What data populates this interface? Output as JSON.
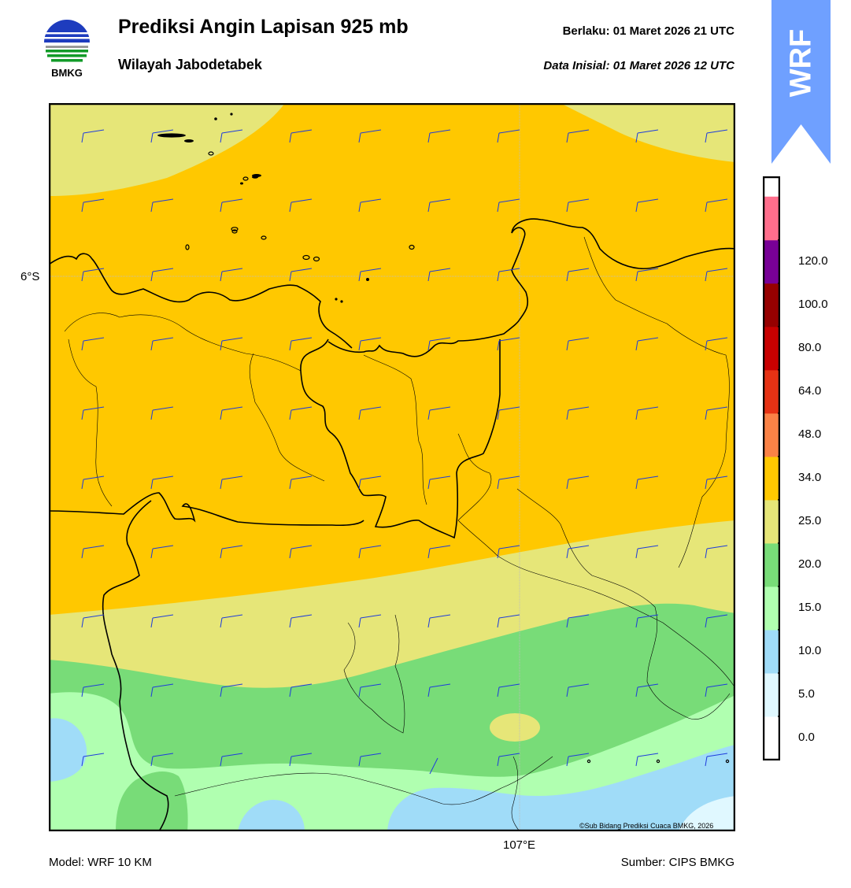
{
  "header": {
    "logo_text": "BMKG",
    "title": "Prediksi Angin Lapisan 925 mb",
    "subtitle": "Wilayah Jabodetabek",
    "valid_time": "Berlaku:  01 Maret 2026 21 UTC",
    "init_time": "Data Inisial:  01 Maret 2026 12 UTC",
    "badge": "WRF"
  },
  "map": {
    "lat_label": "6°S",
    "lon_label": "107°E",
    "credit": "©Sub Bidang Prediksi Cuaca BMKG, 2026"
  },
  "footer": {
    "model": "Model: WRF 10 KM",
    "source": "Sumber: CIPS BMKG"
  },
  "legend": {
    "labels": [
      "0.0",
      "5.0",
      "10.0",
      "15.0",
      "20.0",
      "25.0",
      "34.0",
      "48.0",
      "64.0",
      "80.0",
      "100.0",
      "120.0"
    ],
    "colors": [
      "#ffffff",
      "#e0f8ff",
      "#a0dcf8",
      "#b0ffb0",
      "#78dc78",
      "#e6e678",
      "#ffc800",
      "#fa8246",
      "#e63214",
      "#c80000",
      "#960000",
      "#780096",
      "#ff6e8c"
    ]
  },
  "colors": {
    "badge": "#6fa0ff",
    "barb": "#1e3cdc",
    "speed_bands": {
      "light_blue": "#a0dcf8",
      "pale_green": "#b0ffb0",
      "green": "#78dc78",
      "khaki": "#e6e678",
      "orange": "#ffc800"
    }
  }
}
